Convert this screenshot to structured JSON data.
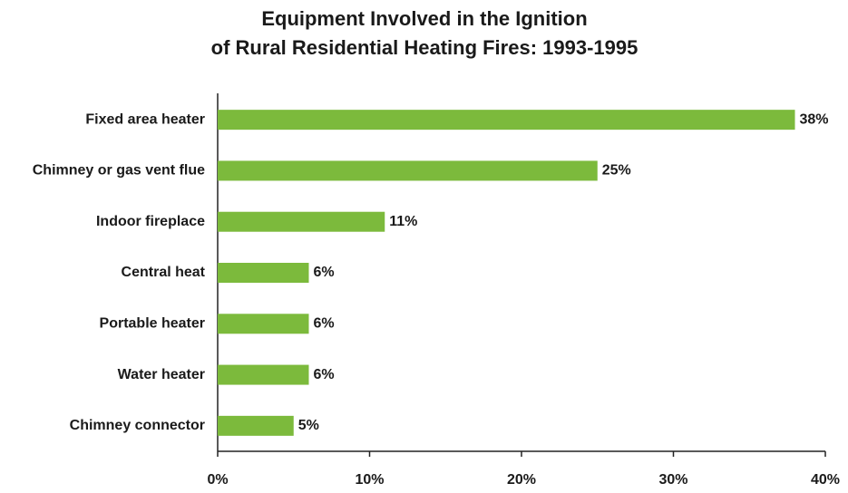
{
  "chart_data": {
    "type": "bar",
    "orientation": "horizontal",
    "title": [
      "Equipment Involved in the Ignition",
      "of Rural Residential Heating Fires:  1993-1995"
    ],
    "categories": [
      "Fixed area heater",
      "Chimney or gas vent flue",
      "Indoor fireplace",
      "Central heat",
      "Portable heater",
      "Water heater",
      "Chimney connector"
    ],
    "values": [
      38,
      25,
      11,
      6,
      6,
      6,
      5
    ],
    "value_labels": [
      "38%",
      "25%",
      "11%",
      "6%",
      "6%",
      "6%",
      "5%"
    ],
    "color": "#7cba3c",
    "xlim": [
      0,
      40
    ],
    "xticks": [
      {
        "value": 0,
        "label": "0%"
      },
      {
        "value": 10,
        "label": "10%"
      },
      {
        "value": 20,
        "label": "20%"
      },
      {
        "value": 30,
        "label": "30%"
      },
      {
        "value": 40,
        "label": "40%"
      }
    ],
    "grid": false
  }
}
